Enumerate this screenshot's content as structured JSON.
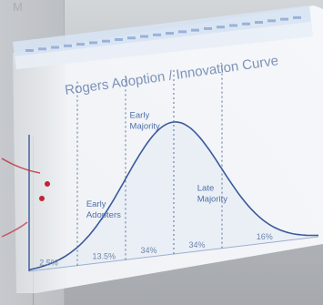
{
  "scene": {
    "wall_mark": "M"
  },
  "slide": {
    "title": "Rogers Adoption / Innovation Curve",
    "background": "#f6f8fb",
    "browser_bar_color": "#dfe9f6",
    "accent": "#6f93c8"
  },
  "chart_data": {
    "type": "area",
    "title": "Rogers Adoption / Innovation Curve",
    "xlabel": "",
    "ylabel": "",
    "curve": "bell",
    "segments": [
      {
        "label": "",
        "percent": "2.5%"
      },
      {
        "label": "Early Adopters",
        "percent": "13.5%"
      },
      {
        "label": "Early Majority",
        "percent": "34%"
      },
      {
        "label": "Late Majority",
        "percent": "34%"
      },
      {
        "label": "",
        "percent": "16%"
      }
    ],
    "grid": false,
    "line_color": "#3a5a9a"
  }
}
